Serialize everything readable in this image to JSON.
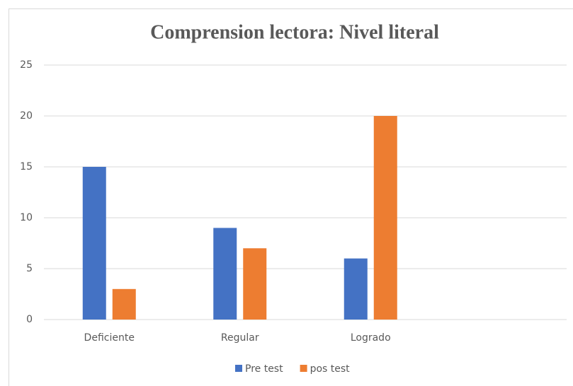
{
  "chart_data": {
    "type": "bar",
    "title": "Comprension lectora: Nivel literal",
    "categories": [
      "Deficiente",
      "Regular",
      "Logrado",
      null
    ],
    "series": [
      {
        "name": "Pre test",
        "color": "#4472c4",
        "values": [
          15,
          9,
          6,
          null
        ]
      },
      {
        "name": "pos test",
        "color": "#ed7d31",
        "values": [
          3,
          7,
          20,
          null
        ]
      }
    ],
    "ylim": [
      0,
      25
    ],
    "yticks": [
      0,
      5,
      10,
      15,
      20,
      25
    ],
    "grid": true,
    "legend": "bottom"
  }
}
